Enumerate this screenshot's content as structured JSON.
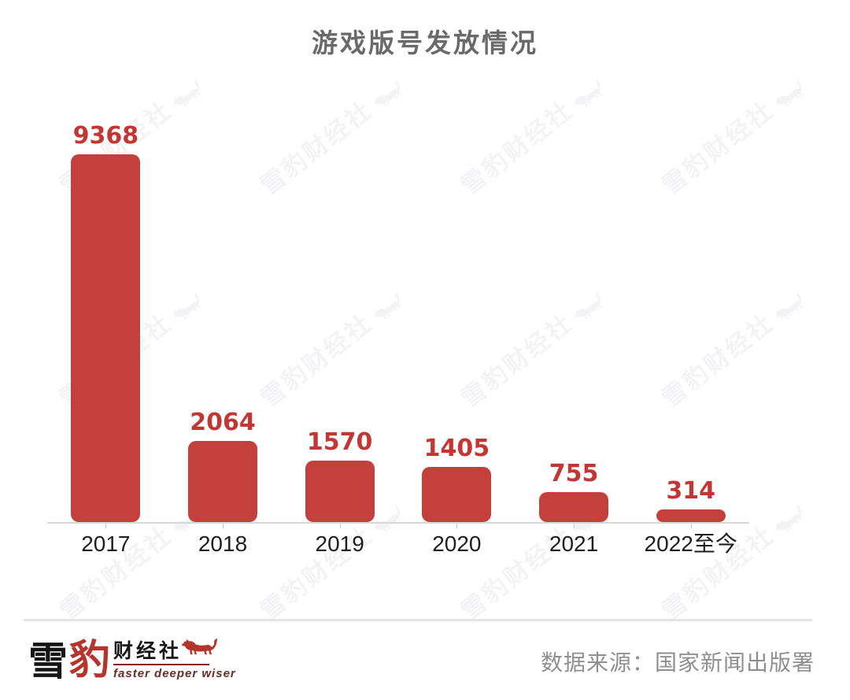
{
  "title": "游戏版号发放情况",
  "chart_data": {
    "type": "bar",
    "title": "游戏版号发放情况",
    "categories": [
      "2017",
      "2018",
      "2019",
      "2020",
      "2021",
      "2022至今"
    ],
    "values": [
      9368,
      2064,
      1570,
      1405,
      755,
      314
    ],
    "xlabel": "",
    "ylabel": "",
    "ylim": [
      0,
      9800
    ],
    "grid": false,
    "legend": false,
    "value_labels_shown": true,
    "bar_color": "#C4403C",
    "value_label_color": "#C23734"
  },
  "watermark": {
    "text": "雪豹财经社",
    "color": "#A7ABC0",
    "opacity": 0.13
  },
  "footer": {
    "source_label": "数据来源：国家新闻出版署",
    "logo": {
      "char_primary": "雪",
      "char_accent": "豹",
      "name_suffix": "财经社",
      "tagline": "faster deeper wiser",
      "leopard_icon": "leopard-silhouette"
    }
  },
  "colors": {
    "accent_red": "#C4403C",
    "title_gray": "#6A6A6A",
    "axis_gray": "#D8D8D8",
    "xlabel_dark": "#1F1F1F",
    "source_gray": "#8F8F8F"
  }
}
